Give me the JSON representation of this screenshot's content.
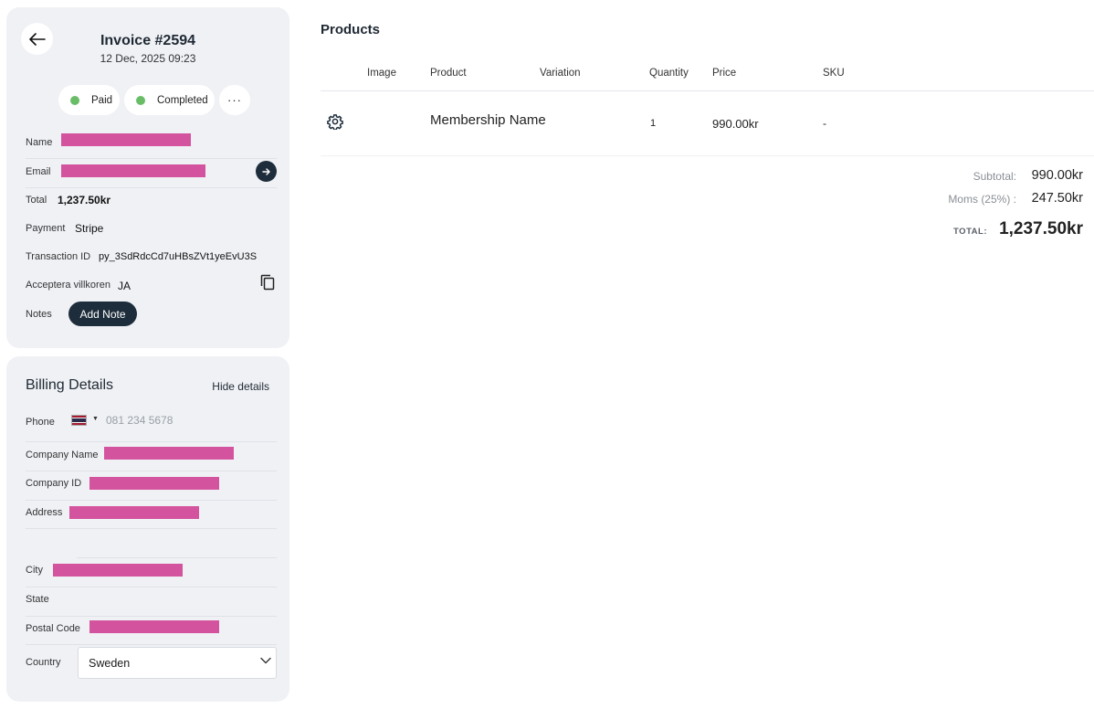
{
  "invoice": {
    "title": "Invoice #2594",
    "date": "12 Dec, 2025 09:23",
    "statuses": [
      {
        "label": "Paid",
        "color": "#6abd67"
      },
      {
        "label": "Completed",
        "color": "#6abd67"
      }
    ],
    "more_label": "···"
  },
  "details": {
    "name_label": "Name",
    "email_label": "Email",
    "total_label": "Total",
    "total_value": "1,237.50kr",
    "payment_label": "Payment",
    "payment_value": "Stripe",
    "transaction_label": "Transaction ID",
    "transaction_value": "py_3SdRdcCd7uHBsZVt1yeEvU3S",
    "terms_label": "Acceptera villkoren",
    "terms_value": "JA",
    "notes_label": "Notes",
    "add_note_label": "Add Note",
    "redact_color": "#d4539e"
  },
  "billing": {
    "title": "Billing Details",
    "hide_label": "Hide details",
    "phone_label": "Phone",
    "phone_placeholder": "081 234 5678",
    "company_name_label": "Company Name",
    "company_id_label": "Company ID",
    "address_label": "Address",
    "city_label": "City",
    "state_label": "State",
    "postal_label": "Postal Code",
    "country_label": "Country",
    "country_value": "Sweden"
  },
  "products": {
    "title": "Products",
    "columns": [
      "Image",
      "Product",
      "Variation",
      "Quantity",
      "Price",
      "SKU"
    ],
    "rows": [
      {
        "image": "gear-icon",
        "product": "Membership Name",
        "variation": "",
        "quantity": "1",
        "price": "990.00kr",
        "sku": "-"
      }
    ]
  },
  "summary": {
    "subtotal_label": "Subtotal:",
    "subtotal_value": "990.00kr",
    "tax_label": "Moms (25%) :",
    "tax_value": "247.50kr",
    "total_label": "TOTAL:",
    "total_value": "1,237.50kr"
  },
  "colors": {
    "dark": "#1e2d3b",
    "panel": "#eff1f5",
    "status_green": "#6abd67"
  }
}
